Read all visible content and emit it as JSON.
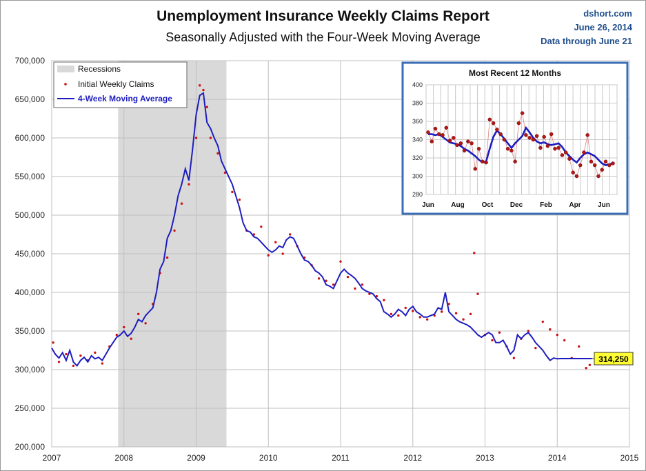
{
  "header": {
    "title": "Unemployment Insurance Weekly Claims Report",
    "subtitle": "Seasonally Adjusted with the Four-Week Moving Average",
    "source": "dshort.com",
    "date": "June 26, 2014",
    "data_through": "Data through June 21"
  },
  "colors": {
    "ma_line": "#1d1dbf",
    "points": "#cc1111",
    "recession": "#d9d9d9",
    "callout_bg": "#ffff33",
    "inset_border": "#3a6db5"
  },
  "chart_data": [
    {
      "type": "line",
      "title": "Unemployment Insurance Weekly Claims Report",
      "subtitle": "Seasonally Adjusted with the Four-Week Moving Average",
      "xlim": [
        2007,
        2015
      ],
      "ylim": [
        200000,
        700000
      ],
      "x_ticks": [
        "2007",
        "2008",
        "2009",
        "2010",
        "2011",
        "2012",
        "2013",
        "2014",
        "2015"
      ],
      "y_ticks": [
        "200,000",
        "250,000",
        "300,000",
        "350,000",
        "400,000",
        "450,000",
        "500,000",
        "550,000",
        "600,000",
        "650,000",
        "700,000"
      ],
      "grid": true,
      "legend": {
        "placement": "top-left",
        "entries": [
          "Recessions",
          "Initial Weekly Claims",
          "4-Week Moving Average"
        ]
      },
      "recession": {
        "start": 2007.92,
        "end": 2009.42
      },
      "series": [
        {
          "name": "4-Week Moving Average",
          "x": [
            2007.0,
            2007.05,
            2007.1,
            2007.15,
            2007.2,
            2007.25,
            2007.3,
            2007.35,
            2007.4,
            2007.45,
            2007.5,
            2007.55,
            2007.6,
            2007.65,
            2007.7,
            2007.75,
            2007.8,
            2007.85,
            2007.9,
            2007.95,
            2008.0,
            2008.05,
            2008.1,
            2008.15,
            2008.2,
            2008.25,
            2008.3,
            2008.35,
            2008.4,
            2008.45,
            2008.5,
            2008.55,
            2008.6,
            2008.65,
            2008.7,
            2008.75,
            2008.8,
            2008.85,
            2008.9,
            2008.95,
            2009.0,
            2009.05,
            2009.1,
            2009.15,
            2009.2,
            2009.25,
            2009.3,
            2009.35,
            2009.4,
            2009.45,
            2009.5,
            2009.55,
            2009.6,
            2009.65,
            2009.7,
            2009.75,
            2009.8,
            2009.85,
            2009.9,
            2009.95,
            2010.0,
            2010.05,
            2010.1,
            2010.15,
            2010.2,
            2010.25,
            2010.3,
            2010.35,
            2010.4,
            2010.45,
            2010.5,
            2010.55,
            2010.6,
            2010.65,
            2010.7,
            2010.75,
            2010.8,
            2010.85,
            2010.9,
            2010.95,
            2011.0,
            2011.05,
            2011.1,
            2011.15,
            2011.2,
            2011.25,
            2011.3,
            2011.35,
            2011.4,
            2011.45,
            2011.5,
            2011.55,
            2011.6,
            2011.65,
            2011.7,
            2011.75,
            2011.8,
            2011.85,
            2011.9,
            2011.95,
            2012.0,
            2012.05,
            2012.1,
            2012.15,
            2012.2,
            2012.25,
            2012.3,
            2012.35,
            2012.4,
            2012.45,
            2012.5,
            2012.55,
            2012.6,
            2012.65,
            2012.7,
            2012.75,
            2012.8,
            2012.85,
            2012.9,
            2012.95,
            2013.0,
            2013.05,
            2013.1,
            2013.15,
            2013.2,
            2013.25,
            2013.3,
            2013.35,
            2013.4,
            2013.45,
            2013.5,
            2013.55,
            2013.6,
            2013.65,
            2013.7,
            2013.75,
            2013.8,
            2013.85,
            2013.9,
            2013.95,
            2014.0,
            2014.05,
            2014.1,
            2014.15,
            2014.2,
            2014.25,
            2014.3,
            2014.35,
            2014.4,
            2014.45,
            2014.48
          ],
          "values": [
            328000,
            320000,
            315000,
            322000,
            312000,
            325000,
            310000,
            305000,
            312000,
            316000,
            310000,
            318000,
            314000,
            316000,
            312000,
            320000,
            328000,
            335000,
            342000,
            345000,
            350000,
            343000,
            347000,
            355000,
            365000,
            362000,
            370000,
            375000,
            380000,
            400000,
            430000,
            440000,
            470000,
            480000,
            500000,
            525000,
            540000,
            560000,
            545000,
            585000,
            630000,
            655000,
            658000,
            620000,
            612000,
            600000,
            590000,
            570000,
            560000,
            550000,
            540000,
            525000,
            510000,
            490000,
            480000,
            478000,
            472000,
            470000,
            465000,
            460000,
            455000,
            452000,
            455000,
            460000,
            458000,
            468000,
            472000,
            470000,
            460000,
            450000,
            442000,
            440000,
            435000,
            428000,
            425000,
            420000,
            410000,
            408000,
            405000,
            415000,
            425000,
            430000,
            425000,
            422000,
            418000,
            412000,
            405000,
            402000,
            400000,
            398000,
            392000,
            388000,
            375000,
            372000,
            368000,
            372000,
            378000,
            375000,
            370000,
            378000,
            382000,
            375000,
            372000,
            368000,
            368000,
            370000,
            372000,
            380000,
            378000,
            400000,
            375000,
            370000,
            365000,
            362000,
            360000,
            358000,
            355000,
            350000,
            345000,
            342000,
            345000,
            348000,
            345000,
            335000,
            335000,
            338000,
            330000,
            320000,
            325000,
            345000,
            340000,
            345000,
            348000,
            342000,
            335000,
            330000,
            325000,
            318000,
            312000,
            315000,
            314000,
            314250,
            314250,
            314250,
            314250,
            314250,
            314250,
            314250,
            314250,
            314250,
            314250
          ]
        },
        {
          "name": "Initial Weekly Claims",
          "x": [
            2007.02,
            2007.1,
            2007.2,
            2007.3,
            2007.4,
            2007.5,
            2007.6,
            2007.7,
            2007.8,
            2007.9,
            2008.0,
            2008.1,
            2008.2,
            2008.3,
            2008.4,
            2008.5,
            2008.6,
            2008.7,
            2008.8,
            2008.9,
            2009.0,
            2009.05,
            2009.1,
            2009.15,
            2009.2,
            2009.3,
            2009.4,
            2009.5,
            2009.6,
            2009.7,
            2009.8,
            2009.9,
            2010.0,
            2010.1,
            2010.2,
            2010.3,
            2010.4,
            2010.5,
            2010.6,
            2010.7,
            2010.8,
            2010.9,
            2011.0,
            2011.1,
            2011.2,
            2011.3,
            2011.4,
            2011.5,
            2011.6,
            2011.7,
            2011.8,
            2011.9,
            2012.0,
            2012.1,
            2012.2,
            2012.3,
            2012.4,
            2012.5,
            2012.6,
            2012.7,
            2012.8,
            2012.85,
            2012.9,
            2013.0,
            2013.1,
            2013.2,
            2013.3,
            2013.4,
            2013.5,
            2013.6,
            2013.7,
            2013.8,
            2013.9,
            2014.0,
            2014.1,
            2014.2,
            2014.3,
            2014.4,
            2014.45
          ],
          "values": [
            335000,
            310000,
            320000,
            305000,
            318000,
            312000,
            322000,
            308000,
            330000,
            345000,
            355000,
            340000,
            372000,
            360000,
            385000,
            425000,
            445000,
            480000,
            515000,
            540000,
            600000,
            668000,
            662000,
            640000,
            600000,
            580000,
            555000,
            530000,
            520000,
            480000,
            475000,
            485000,
            448000,
            465000,
            450000,
            475000,
            460000,
            445000,
            435000,
            418000,
            415000,
            410000,
            440000,
            420000,
            405000,
            410000,
            398000,
            395000,
            390000,
            372000,
            370000,
            380000,
            376000,
            368000,
            365000,
            370000,
            375000,
            385000,
            373000,
            365000,
            372000,
            451000,
            398000,
            345000,
            338000,
            348000,
            330000,
            315000,
            340000,
            350000,
            328000,
            362000,
            352000,
            345000,
            338000,
            315000,
            330000,
            302000,
            306000
          ]
        }
      ],
      "callout": "314,250"
    },
    {
      "type": "line",
      "title": "Most Recent 12 Months",
      "x_ticks": [
        "Jun",
        "Aug",
        "Oct",
        "Dec",
        "Feb",
        "Apr",
        "Jun"
      ],
      "y_ticks": [
        "280",
        "300",
        "320",
        "340",
        "360",
        "380",
        "400"
      ],
      "ylim": [
        280,
        400
      ],
      "grid": true,
      "series": [
        {
          "name": "4-Week Moving Average",
          "values": [
            346,
            346,
            345,
            346,
            343,
            340,
            337,
            336,
            335,
            333,
            330,
            328,
            325,
            322,
            318,
            315,
            316,
            330,
            343,
            350,
            346,
            341,
            336,
            331,
            336,
            340,
            344,
            353,
            348,
            342,
            338,
            336,
            337,
            335,
            334,
            335,
            336,
            332,
            326,
            322,
            318,
            315,
            320,
            324,
            326,
            324,
            322,
            318,
            314,
            312,
            313,
            314
          ]
        },
        {
          "name": "Initial Weekly Claims",
          "values": [
            348,
            338,
            352,
            346,
            345,
            353,
            339,
            342,
            334,
            336,
            328,
            338,
            336,
            308,
            330,
            316,
            315,
            362,
            358,
            351,
            346,
            340,
            330,
            328,
            316,
            358,
            369,
            345,
            342,
            340,
            344,
            331,
            343,
            333,
            346,
            330,
            331,
            323,
            326,
            319,
            304,
            300,
            312,
            326,
            345,
            316,
            312,
            300,
            307,
            316,
            312,
            314
          ]
        }
      ]
    }
  ]
}
